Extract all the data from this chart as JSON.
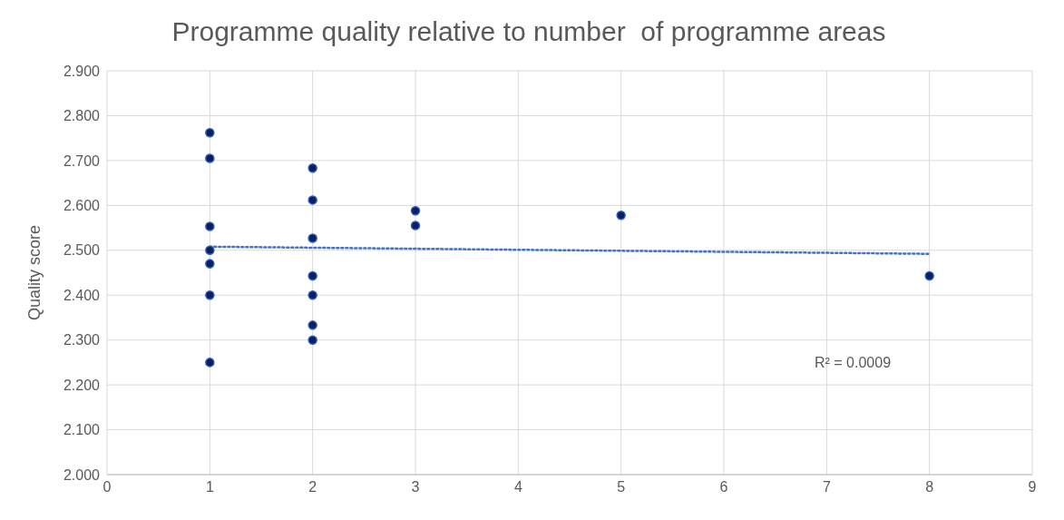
{
  "chart_data": {
    "type": "scatter",
    "title": "Programme quality relative to number  of programme areas",
    "ylabel": "Quality score",
    "xlim": [
      0,
      9
    ],
    "xticks": [
      0,
      1,
      2,
      3,
      4,
      5,
      6,
      7,
      8,
      9
    ],
    "ylim": [
      2.0,
      2.9
    ],
    "yticks": [
      {
        "value": 2.0,
        "label": "2.000"
      },
      {
        "value": 2.1,
        "label": "2.100"
      },
      {
        "value": 2.2,
        "label": "2.200"
      },
      {
        "value": 2.3,
        "label": "2.300"
      },
      {
        "value": 2.4,
        "label": "2.400"
      },
      {
        "value": 2.5,
        "label": "2.500"
      },
      {
        "value": 2.6,
        "label": "2.600"
      },
      {
        "value": 2.7,
        "label": "2.700"
      },
      {
        "value": 2.8,
        "label": "2.800"
      },
      {
        "value": 2.9,
        "label": "2.900"
      }
    ],
    "grid": true,
    "series": [
      {
        "color": "#0b1f5c",
        "marker": "circle",
        "x": [
          1,
          1,
          1,
          1,
          1,
          1,
          1,
          2,
          2,
          2,
          2,
          2,
          2,
          2,
          3,
          3,
          5,
          8
        ],
        "values": [
          2.762,
          2.705,
          2.553,
          2.5,
          2.47,
          2.4,
          2.25,
          2.683,
          2.612,
          2.527,
          2.443,
          2.4,
          2.333,
          2.3,
          2.588,
          2.555,
          2.578,
          2.443
        ]
      },
      {
        "type": "line",
        "color": "#4472c4",
        "marker": "none",
        "line_style": "dotted",
        "x": [
          1,
          8
        ],
        "values": [
          2.508,
          2.492
        ]
      }
    ],
    "annotations": [
      "R² = 0.0009"
    ]
  }
}
